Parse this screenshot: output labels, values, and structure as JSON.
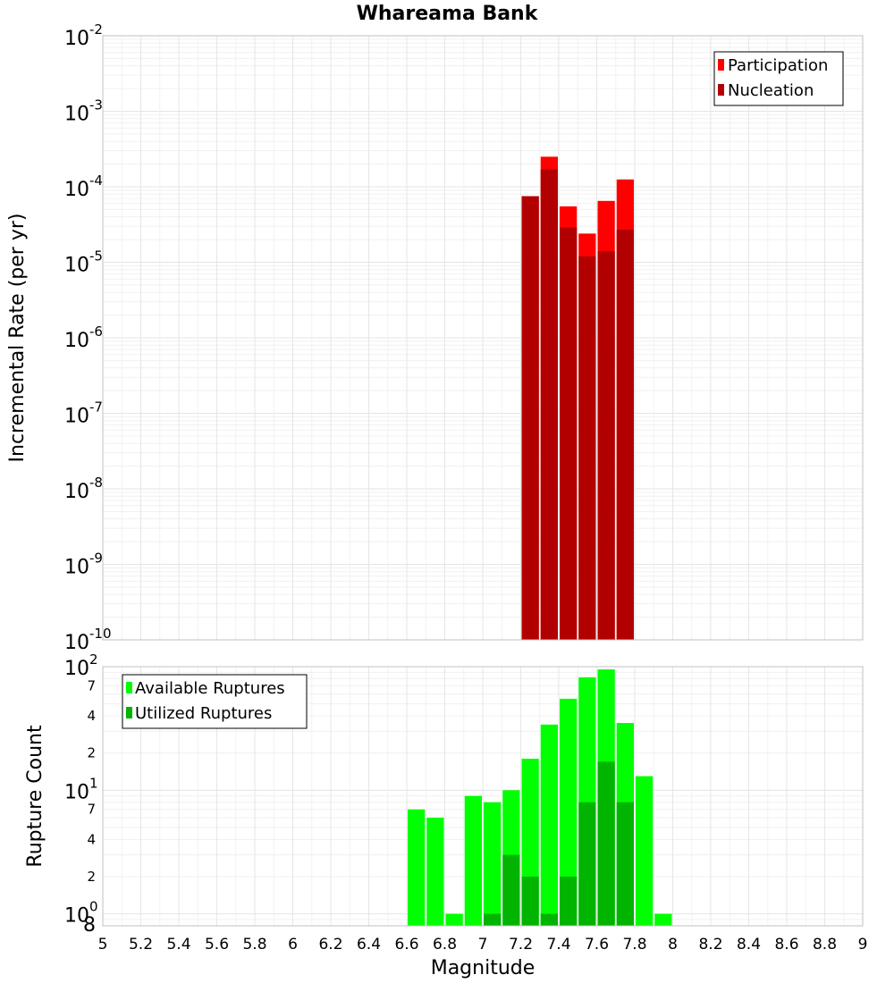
{
  "chart_data": [
    {
      "type": "bar",
      "title": "Whareama Bank",
      "ylabel": "Incremental Rate (per yr)",
      "yscale": "log",
      "ylim": [
        1e-10,
        0.01
      ],
      "xlim": [
        5,
        9
      ],
      "y_ticks": [
        {
          "base": "10",
          "exp": "-2"
        },
        {
          "base": "10",
          "exp": "-3"
        },
        {
          "base": "10",
          "exp": "-4"
        },
        {
          "base": "10",
          "exp": "-5"
        },
        {
          "base": "10",
          "exp": "-6"
        },
        {
          "base": "10",
          "exp": "-7"
        },
        {
          "base": "10",
          "exp": "-8"
        },
        {
          "base": "10",
          "exp": "-9"
        },
        {
          "base": "10",
          "exp": "-10"
        }
      ],
      "grid": true,
      "legend_position": "top-right",
      "bin_width": 0.1,
      "x": [
        7.25,
        7.35,
        7.45,
        7.55,
        7.65,
        7.75
      ],
      "series": [
        {
          "name": "Participation",
          "color": "#ff0000",
          "values": [
            7.5e-05,
            0.00025,
            5.5e-05,
            2.4e-05,
            6.5e-05,
            0.000125
          ]
        },
        {
          "name": "Nucleation",
          "color": "#b20000",
          "values": [
            7.5e-05,
            0.00017,
            2.9e-05,
            1.2e-05,
            1.4e-05,
            2.7e-05
          ]
        }
      ]
    },
    {
      "type": "bar",
      "xlabel": "Magnitude",
      "ylabel": "Rupture Count",
      "yscale": "log",
      "ylim": [
        0.8,
        100
      ],
      "xlim": [
        5,
        9
      ],
      "x_ticks": [
        "5",
        "5.2",
        "5.4",
        "5.6",
        "5.8",
        "6",
        "6.2",
        "6.4",
        "6.6",
        "6.8",
        "7",
        "7.2",
        "7.4",
        "7.6",
        "7.8",
        "8",
        "8.2",
        "8.4",
        "8.6",
        "8.8",
        "9"
      ],
      "y_major_ticks": [
        {
          "base": "10",
          "exp": "2",
          "value": 100
        },
        {
          "base": "10",
          "exp": "1",
          "value": 10
        },
        {
          "base": "10",
          "exp": "0",
          "value": 1
        }
      ],
      "y_minor_ticks": [
        {
          "label": "7",
          "value": 70
        },
        {
          "label": "4",
          "value": 40
        },
        {
          "label": "2",
          "value": 20
        },
        {
          "label": "7",
          "value": 7
        },
        {
          "label": "4",
          "value": 4
        },
        {
          "label": "2",
          "value": 2
        },
        {
          "label": "8",
          "value": 0.8
        }
      ],
      "grid": true,
      "legend_position": "top-left",
      "bin_width": 0.1,
      "x": [
        6.65,
        6.75,
        6.85,
        6.95,
        7.05,
        7.15,
        7.25,
        7.35,
        7.45,
        7.55,
        7.65,
        7.75,
        7.85,
        7.95
      ],
      "series": [
        {
          "name": "Available Ruptures",
          "color": "#00ff00",
          "values": [
            7,
            6,
            1,
            9,
            8,
            10,
            18,
            34,
            55,
            82,
            95,
            35,
            13,
            1
          ]
        },
        {
          "name": "Utilized Ruptures",
          "color": "#00b400",
          "values": [
            0,
            0,
            0,
            0,
            1,
            3,
            2,
            1,
            2,
            8,
            17,
            8,
            0,
            0
          ]
        }
      ]
    }
  ]
}
